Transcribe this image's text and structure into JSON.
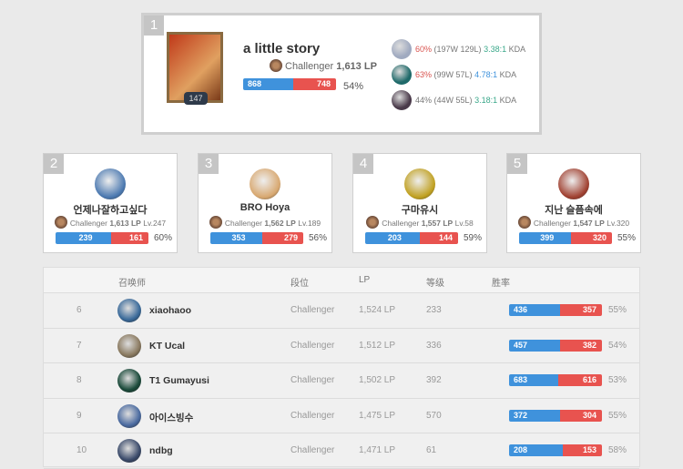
{
  "top": {
    "rank": "1",
    "name": "a little story",
    "level": "147",
    "tier": "Challenger",
    "lp": "1,613 LP",
    "wins": 868,
    "losses": 748,
    "winrate": "54%",
    "champions": [
      {
        "winrate": "60%",
        "record": "(197W 129L)",
        "kda": "3.38:1",
        "kda_label": "KDA",
        "wr_color": "red",
        "kda_color": "grn",
        "icon": "#a0aac0"
      },
      {
        "winrate": "63%",
        "record": "(99W 57L)",
        "kda": "4.78:1",
        "kda_label": "KDA",
        "wr_color": "red",
        "kda_color": "blu",
        "icon": "#1f6a6a"
      },
      {
        "winrate": "44%",
        "record": "(44W 55L)",
        "kda": "3.18:1",
        "kda_label": "KDA",
        "wr_color": "",
        "kda_color": "grn",
        "icon": "#4a3a4a"
      }
    ]
  },
  "cards": [
    {
      "rank": "2",
      "name": "언제나잘하고싶다",
      "tier": "Challenger",
      "lp": "1,613 LP",
      "level": "Lv.247",
      "wins": 239,
      "losses": 161,
      "winrate": "60%",
      "icon": "#4a78b0"
    },
    {
      "rank": "3",
      "name": "BRO Hoya",
      "tier": "Challenger",
      "lp": "1,562 LP",
      "level": "Lv.189",
      "wins": 353,
      "losses": 279,
      "winrate": "56%",
      "icon": "#d8a870"
    },
    {
      "rank": "4",
      "name": "구마유시",
      "tier": "Challenger",
      "lp": "1,557 LP",
      "level": "Lv.58",
      "wins": 203,
      "losses": 144,
      "winrate": "59%",
      "icon": "#c0a020"
    },
    {
      "rank": "5",
      "name": "지난 슬픔속에",
      "tier": "Challenger",
      "lp": "1,547 LP",
      "level": "Lv.320",
      "wins": 399,
      "losses": 320,
      "winrate": "55%",
      "icon": "#a04030"
    }
  ],
  "table": {
    "headers": {
      "summoner": "召唤师",
      "tier": "段位",
      "lp": "LP",
      "level": "等级",
      "winrate": "胜率"
    },
    "rows": [
      {
        "rank": "6",
        "name": "xiaohaoo",
        "tier": "Challenger",
        "lp": "1,524 LP",
        "level": "233",
        "wins": 436,
        "losses": 357,
        "winrate": "55%",
        "icon": "#3a6a9a"
      },
      {
        "rank": "7",
        "name": "KT Ucal",
        "tier": "Challenger",
        "lp": "1,512 LP",
        "level": "336",
        "wins": 457,
        "losses": 382,
        "winrate": "54%",
        "icon": "#8a7a60"
      },
      {
        "rank": "8",
        "name": "T1 Gumayusi",
        "tier": "Challenger",
        "lp": "1,502 LP",
        "level": "392",
        "wins": 683,
        "losses": 616,
        "winrate": "53%",
        "icon": "#1a4a3a"
      },
      {
        "rank": "9",
        "name": "아이스빙수",
        "tier": "Challenger",
        "lp": "1,475 LP",
        "level": "570",
        "wins": 372,
        "losses": 304,
        "winrate": "55%",
        "icon": "#4a6aa0"
      },
      {
        "rank": "10",
        "name": "ndbg",
        "tier": "Challenger",
        "lp": "1,471 LP",
        "level": "61",
        "wins": 208,
        "losses": 153,
        "winrate": "58%",
        "icon": "#3a4a6a"
      }
    ]
  }
}
